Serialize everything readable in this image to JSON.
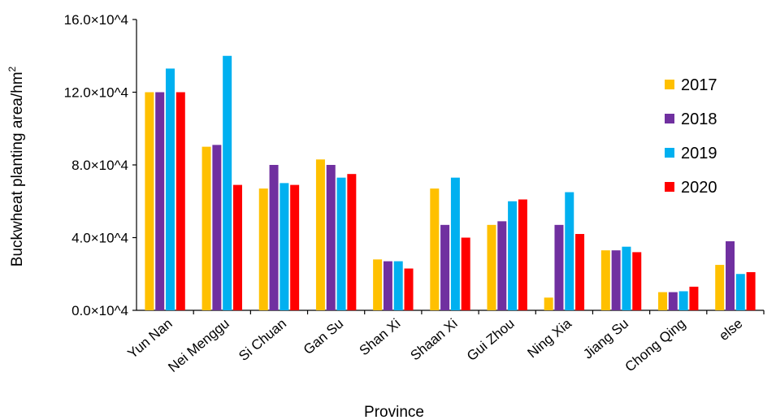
{
  "chart_data": {
    "type": "bar",
    "xlabel": "Province",
    "ylabel": "Buckwheat planting area/hm",
    "ylabel_superscript": "2",
    "ylim": [
      0,
      16
    ],
    "yticks": [
      {
        "value": 0,
        "label": "0.0×10^4"
      },
      {
        "value": 4,
        "label": "4.0×10^4"
      },
      {
        "value": 8,
        "label": "8.0×10^4"
      },
      {
        "value": 12,
        "label": "12.0×10^4"
      },
      {
        "value": 16,
        "label": "16.0×10^4"
      }
    ],
    "grid": false,
    "legend_position": "right",
    "categories": [
      "Yun Nan",
      "Nei Menggu",
      "Si Chuan",
      "Gan Su",
      "Shan Xi",
      "Shaan Xi",
      "Gui Zhou",
      "Ning Xia",
      "Jiang Su",
      "Chong Qing",
      "else"
    ],
    "series": [
      {
        "name": "2017",
        "color": "#FFC000",
        "values": [
          12.0,
          9.0,
          6.7,
          8.3,
          2.8,
          6.7,
          4.7,
          0.7,
          3.3,
          1.0,
          2.5
        ]
      },
      {
        "name": "2018",
        "color": "#7030A0",
        "values": [
          12.0,
          9.1,
          8.0,
          8.0,
          2.7,
          4.7,
          4.9,
          4.7,
          3.3,
          1.0,
          3.8
        ]
      },
      {
        "name": "2019",
        "color": "#00B0F0",
        "values": [
          13.3,
          14.0,
          7.0,
          7.3,
          2.7,
          7.3,
          6.0,
          6.5,
          3.5,
          1.05,
          2.0
        ]
      },
      {
        "name": "2020",
        "color": "#FF0000",
        "values": [
          12.0,
          6.9,
          6.9,
          7.5,
          2.3,
          4.0,
          6.1,
          4.2,
          3.2,
          1.3,
          2.1
        ]
      }
    ]
  }
}
